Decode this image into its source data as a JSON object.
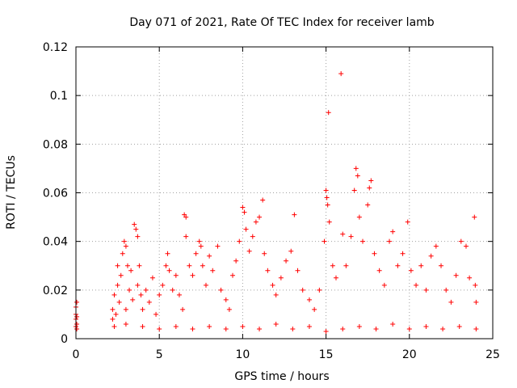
{
  "chart_data": {
    "type": "scatter",
    "title": "Day 071 of 2021, Rate Of TEC Index for receiver lamb",
    "xlabel": "GPS time / hours",
    "ylabel": "ROTI / TECUs",
    "xlim": [
      0,
      25
    ],
    "ylim": [
      0,
      0.12
    ],
    "xticks": [
      0,
      5,
      10,
      15,
      20,
      25
    ],
    "xtick_labels": [
      "0",
      "5",
      "10",
      "15",
      "20",
      "25"
    ],
    "yticks": [
      0,
      0.02,
      0.04,
      0.06,
      0.08,
      0.1,
      0.12
    ],
    "ytick_labels": [
      "0",
      "0.02",
      "0.04",
      "0.06",
      "0.08",
      "0.1",
      "0.12"
    ],
    "grid": true,
    "marker": "+",
    "series": [
      {
        "name": "ROTI",
        "color": "#ff0000",
        "points": [
          [
            0.0,
            0.005
          ],
          [
            0.0,
            0.008
          ],
          [
            0.0,
            0.01
          ],
          [
            0.0,
            0.013
          ],
          [
            0.05,
            0.015
          ],
          [
            0.05,
            0.006
          ],
          [
            0.05,
            0.009
          ],
          [
            0.05,
            0.004
          ],
          [
            2.2,
            0.008
          ],
          [
            2.2,
            0.012
          ],
          [
            2.3,
            0.018
          ],
          [
            2.4,
            0.01
          ],
          [
            2.5,
            0.022
          ],
          [
            2.5,
            0.03
          ],
          [
            2.6,
            0.015
          ],
          [
            2.7,
            0.026
          ],
          [
            2.8,
            0.035
          ],
          [
            2.9,
            0.04
          ],
          [
            3.0,
            0.038
          ],
          [
            3.0,
            0.012
          ],
          [
            3.1,
            0.03
          ],
          [
            3.2,
            0.02
          ],
          [
            3.3,
            0.028
          ],
          [
            3.4,
            0.016
          ],
          [
            3.5,
            0.047
          ],
          [
            3.6,
            0.045
          ],
          [
            3.7,
            0.042
          ],
          [
            3.7,
            0.022
          ],
          [
            3.8,
            0.03
          ],
          [
            3.9,
            0.018
          ],
          [
            4.0,
            0.012
          ],
          [
            4.2,
            0.02
          ],
          [
            4.4,
            0.015
          ],
          [
            4.6,
            0.025
          ],
          [
            4.8,
            0.01
          ],
          [
            5.0,
            0.018
          ],
          [
            5.2,
            0.022
          ],
          [
            5.4,
            0.03
          ],
          [
            5.5,
            0.035
          ],
          [
            5.6,
            0.028
          ],
          [
            5.8,
            0.02
          ],
          [
            6.0,
            0.026
          ],
          [
            6.2,
            0.018
          ],
          [
            6.4,
            0.012
          ],
          [
            6.5,
            0.051
          ],
          [
            6.6,
            0.05
          ],
          [
            6.6,
            0.042
          ],
          [
            6.8,
            0.03
          ],
          [
            7.0,
            0.026
          ],
          [
            7.2,
            0.035
          ],
          [
            7.4,
            0.04
          ],
          [
            7.5,
            0.038
          ],
          [
            7.6,
            0.03
          ],
          [
            7.8,
            0.022
          ],
          [
            8.0,
            0.034
          ],
          [
            8.2,
            0.028
          ],
          [
            8.5,
            0.038
          ],
          [
            8.7,
            0.02
          ],
          [
            9.0,
            0.016
          ],
          [
            9.2,
            0.012
          ],
          [
            9.4,
            0.026
          ],
          [
            9.6,
            0.032
          ],
          [
            9.8,
            0.04
          ],
          [
            10.0,
            0.054
          ],
          [
            10.1,
            0.052
          ],
          [
            10.2,
            0.045
          ],
          [
            10.4,
            0.036
          ],
          [
            10.6,
            0.042
          ],
          [
            10.8,
            0.048
          ],
          [
            11.0,
            0.05
          ],
          [
            11.2,
            0.057
          ],
          [
            11.3,
            0.035
          ],
          [
            11.5,
            0.028
          ],
          [
            11.8,
            0.022
          ],
          [
            12.0,
            0.018
          ],
          [
            12.3,
            0.025
          ],
          [
            12.6,
            0.032
          ],
          [
            12.9,
            0.036
          ],
          [
            13.1,
            0.051
          ],
          [
            13.3,
            0.028
          ],
          [
            13.6,
            0.02
          ],
          [
            14.0,
            0.016
          ],
          [
            14.3,
            0.012
          ],
          [
            14.6,
            0.02
          ],
          [
            14.9,
            0.04
          ],
          [
            15.0,
            0.061
          ],
          [
            15.05,
            0.058
          ],
          [
            15.1,
            0.055
          ],
          [
            15.15,
            0.093
          ],
          [
            15.2,
            0.048
          ],
          [
            15.4,
            0.03
          ],
          [
            15.6,
            0.025
          ],
          [
            15.9,
            0.109
          ],
          [
            16.0,
            0.043
          ],
          [
            16.2,
            0.03
          ],
          [
            16.5,
            0.042
          ],
          [
            16.7,
            0.061
          ],
          [
            16.8,
            0.07
          ],
          [
            16.9,
            0.067
          ],
          [
            17.0,
            0.05
          ],
          [
            17.2,
            0.04
          ],
          [
            17.5,
            0.055
          ],
          [
            17.6,
            0.062
          ],
          [
            17.7,
            0.065
          ],
          [
            17.9,
            0.035
          ],
          [
            18.2,
            0.028
          ],
          [
            18.5,
            0.022
          ],
          [
            18.8,
            0.04
          ],
          [
            19.0,
            0.044
          ],
          [
            19.3,
            0.03
          ],
          [
            19.6,
            0.035
          ],
          [
            19.9,
            0.048
          ],
          [
            20.1,
            0.028
          ],
          [
            20.4,
            0.022
          ],
          [
            20.7,
            0.03
          ],
          [
            21.0,
            0.02
          ],
          [
            21.3,
            0.034
          ],
          [
            21.6,
            0.038
          ],
          [
            21.9,
            0.03
          ],
          [
            22.2,
            0.02
          ],
          [
            22.5,
            0.015
          ],
          [
            22.8,
            0.026
          ],
          [
            23.1,
            0.04
          ],
          [
            23.4,
            0.038
          ],
          [
            23.6,
            0.025
          ],
          [
            23.9,
            0.05
          ],
          [
            23.95,
            0.022
          ],
          [
            24.0,
            0.015
          ],
          [
            2.3,
            0.005
          ],
          [
            3.0,
            0.006
          ],
          [
            4.0,
            0.005
          ],
          [
            5.0,
            0.004
          ],
          [
            6.0,
            0.005
          ],
          [
            7.0,
            0.004
          ],
          [
            8.0,
            0.005
          ],
          [
            9.0,
            0.004
          ],
          [
            10.0,
            0.005
          ],
          [
            11.0,
            0.004
          ],
          [
            12.0,
            0.006
          ],
          [
            13.0,
            0.004
          ],
          [
            14.0,
            0.005
          ],
          [
            15.0,
            0.003
          ],
          [
            16.0,
            0.004
          ],
          [
            17.0,
            0.005
          ],
          [
            18.0,
            0.004
          ],
          [
            19.0,
            0.006
          ],
          [
            20.0,
            0.004
          ],
          [
            21.0,
            0.005
          ],
          [
            22.0,
            0.004
          ],
          [
            23.0,
            0.005
          ],
          [
            24.0,
            0.004
          ]
        ]
      }
    ]
  }
}
